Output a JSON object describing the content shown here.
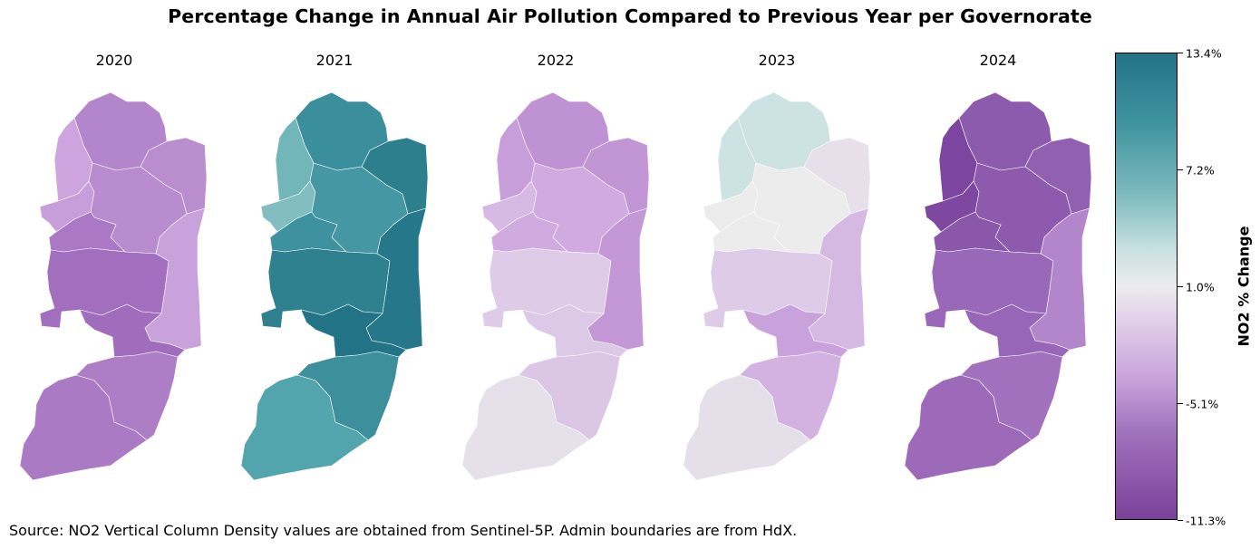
{
  "title": "Percentage Change in Annual Air Pollution Compared to Previous Year per Governorate",
  "source": "Source: NO2 Vertical Column Density values are obtained from Sentinel-5P. Admin boundaries are from HdX.",
  "colorbar": {
    "label": "NO2 % Change",
    "ticks": [
      "13.4%",
      "7.2%",
      "1.0%",
      "-5.1%",
      "-11.3%"
    ],
    "min": -11.3,
    "max": 13.4
  },
  "panels": [
    {
      "year": "2020",
      "colors": {
        "jenin": "#b385ca",
        "tubas": "#ba8dcf",
        "tulkarm": "#cda4dd",
        "qalqilya": "#c79ed9",
        "nablus": "#b88ccf",
        "salfit": "#aa78c4",
        "ramallah": "#a26fbe",
        "jericho": "#c9a1db",
        "jerusalem": "#a06dbd",
        "bethlehem": "#ad7dc6",
        "hebron": "#ab7ac5"
      }
    },
    {
      "year": "2021",
      "colors": {
        "jenin": "#3b8f9c",
        "tubas": "#2d7f8e",
        "tulkarm": "#73b6ba",
        "qalqilya": "#82bec1",
        "nablus": "#4597a3",
        "salfit": "#3e919e",
        "ramallah": "#2f818f",
        "jericho": "#26778a",
        "jerusalem": "#237387",
        "bethlehem": "#3d8f9c",
        "hebron": "#52a4ad"
      }
    },
    {
      "year": "2022",
      "colors": {
        "jenin": "#bf92d3",
        "tubas": "#c295d4",
        "tulkarm": "#c79ed9",
        "qalqilya": "#d7b9e3",
        "nablus": "#d0aae0",
        "salfit": "#d0abdf",
        "ramallah": "#ddcbe8",
        "jericho": "#c497d6",
        "jerusalem": "#dcc8e7",
        "bethlehem": "#dbc6e6",
        "hebron": "#e6e0ea"
      }
    },
    {
      "year": "2023",
      "colors": {
        "jenin": "#cde2e2",
        "tubas": "#e7dfea",
        "tulkarm": "#cde2e2",
        "qalqilya": "#ececec",
        "nablus": "#ececec",
        "salfit": "#ececec",
        "ramallah": "#ddcbe8",
        "jericho": "#d6b9e3",
        "jerusalem": "#c9a1db",
        "bethlehem": "#d3b2e1",
        "hebron": "#e5dfea"
      }
    },
    {
      "year": "2024",
      "colors": {
        "jenin": "#8d5bae",
        "tubas": "#9260b1",
        "tulkarm": "#7c459f",
        "qalqilya": "#7e48a1",
        "nablus": "#8d5aae",
        "salfit": "#8a57ab",
        "ramallah": "#9a68b8",
        "jericho": "#b385ca",
        "jerusalem": "#9866b6",
        "bethlehem": "#a171bd",
        "hebron": "#9c6ab9"
      }
    }
  ]
}
